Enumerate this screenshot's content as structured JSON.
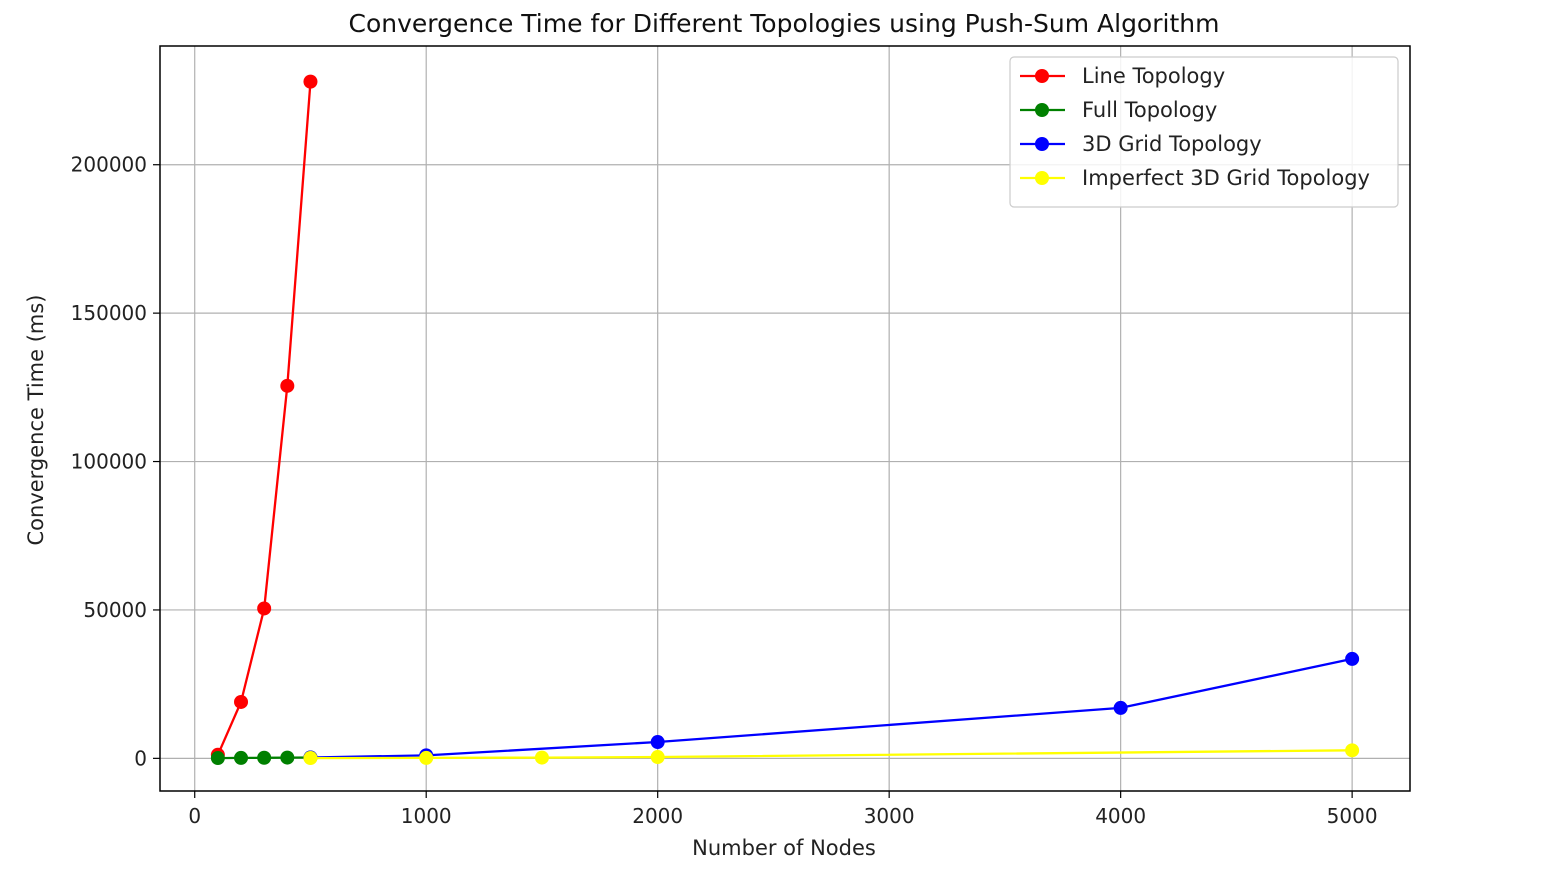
{
  "chart_data": {
    "type": "line",
    "title": "Convergence Time for Different Topologies using Push-Sum Algorithm",
    "xlabel": "Number of Nodes",
    "ylabel": "Convergence Time (ms)",
    "xlim": [
      -150,
      5250
    ],
    "ylim": [
      -11000,
      240000
    ],
    "xticks": [
      0,
      1000,
      2000,
      3000,
      4000,
      5000
    ],
    "yticks": [
      0,
      50000,
      100000,
      150000,
      200000
    ],
    "grid": true,
    "legend_position": "top-right",
    "series": [
      {
        "name": "Line Topology",
        "color": "#ff0000",
        "x": [
          100,
          200,
          300,
          400,
          500
        ],
        "y": [
          1200,
          19000,
          50500,
          125500,
          228000
        ]
      },
      {
        "name": "Full Topology",
        "color": "#008000",
        "x": [
          100,
          200,
          300,
          400,
          500
        ],
        "y": [
          100,
          150,
          200,
          250,
          300
        ]
      },
      {
        "name": "3D Grid Topology",
        "color": "#0000ff",
        "x": [
          500,
          1000,
          2000,
          4000,
          5000
        ],
        "y": [
          300,
          1000,
          5500,
          17000,
          33500
        ]
      },
      {
        "name": "Imperfect 3D Grid Topology",
        "color": "#ffff00",
        "x": [
          500,
          1000,
          1500,
          2000,
          5000
        ],
        "y": [
          100,
          150,
          250,
          450,
          2700
        ]
      }
    ]
  }
}
